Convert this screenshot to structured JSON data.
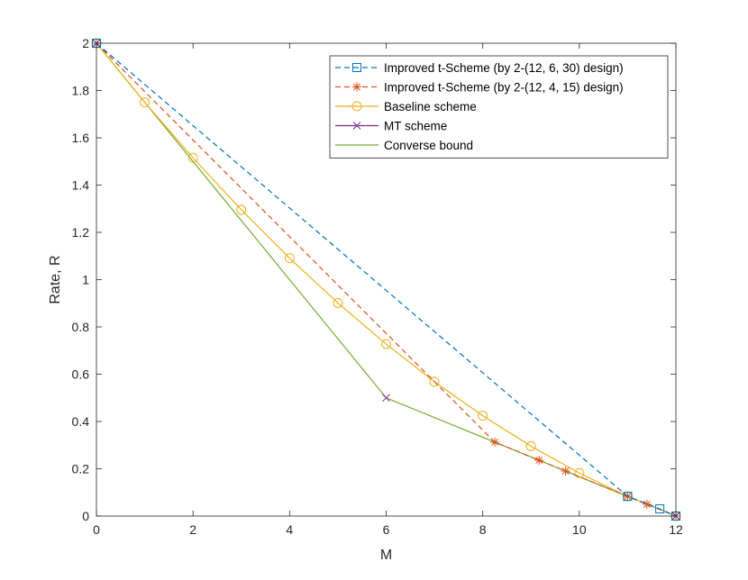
{
  "chart_data": {
    "type": "line",
    "xlabel": "M",
    "ylabel": "Rate, R",
    "xlim": [
      0,
      12
    ],
    "ylim": [
      0,
      2
    ],
    "xticks": [
      "0",
      "2",
      "4",
      "6",
      "8",
      "10",
      "12"
    ],
    "yticks": [
      "0",
      "0.2",
      "0.4",
      "0.6",
      "0.8",
      "1",
      "1.2",
      "1.4",
      "1.6",
      "1.8",
      "2"
    ],
    "grid": false,
    "legend_position": "top-right",
    "series": [
      {
        "name": "Improved t-Scheme (by 2-(12, 6, 30) design)",
        "color": "#0072BD",
        "line_style": "dashed",
        "marker": "square",
        "x": [
          0,
          11,
          11.6667,
          12
        ],
        "y": [
          2,
          0.0833,
          0.0303,
          0
        ]
      },
      {
        "name": "Improved t-Scheme (by 2-(12, 4, 15) design)",
        "color": "#D95319",
        "line_style": "dashed",
        "marker": "asterisk",
        "x": [
          0,
          8.25,
          9.1667,
          9.7143,
          11,
          11.4,
          12
        ],
        "y": [
          2,
          0.3125,
          0.2361,
          0.1905,
          0.0833,
          0.05,
          0
        ]
      },
      {
        "name": "Baseline scheme",
        "color": "#EDB120",
        "line_style": "solid",
        "marker": "circle",
        "x": [
          0,
          1,
          2,
          3,
          4,
          5,
          6,
          7,
          8,
          9,
          10,
          11,
          12
        ],
        "y": [
          2,
          1.75,
          1.5152,
          1.2955,
          1.0909,
          0.9015,
          0.7273,
          0.5682,
          0.4242,
          0.2955,
          0.1818,
          0.0833,
          0
        ]
      },
      {
        "name": "MT scheme",
        "color": "#7E2F8E",
        "line_style": "none",
        "marker": "x",
        "x": [
          0,
          6,
          12
        ],
        "y": [
          2,
          0.5,
          0
        ]
      },
      {
        "name": "Converse bound",
        "color": "#77AC30",
        "line_style": "solid",
        "marker": "none",
        "x": [
          0,
          2,
          6,
          8.25,
          9.1667,
          9.7143,
          11,
          12
        ],
        "y": [
          2,
          1.5,
          0.5,
          0.3125,
          0.2361,
          0.1905,
          0.0833,
          0
        ]
      }
    ]
  }
}
